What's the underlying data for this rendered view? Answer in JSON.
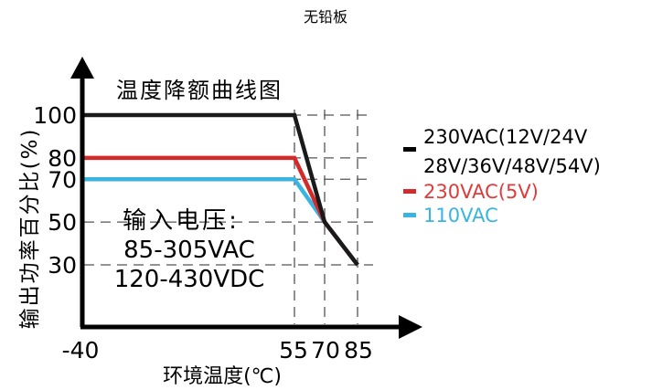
{
  "page_title": "无铅板",
  "chart_data": {
    "type": "line",
    "title": "温度降额曲线图",
    "xlabel": "环境温度(℃)",
    "ylabel": "输出功率百分比(%)",
    "x_ticks": [
      -40,
      55,
      70,
      85
    ],
    "y_ticks": [
      100,
      80,
      70,
      50,
      30
    ],
    "xlim": [
      -40,
      85
    ],
    "ylim": [
      30,
      100
    ],
    "legend_position": "right",
    "input_note": [
      "输入电压:",
      "85-305VAC",
      "120-430VDC"
    ],
    "series": [
      {
        "name_lines": [
          "230VAC(12V/24V",
          "28V/36V/48V/54V)"
        ],
        "color": "#1a1a1a",
        "text_color": "#000000",
        "points": [
          [
            -40,
            100
          ],
          [
            55,
            100
          ],
          [
            70,
            50
          ],
          [
            85,
            30
          ]
        ]
      },
      {
        "name_lines": [
          "230VAC(5V)"
        ],
        "color": "#d42a2a",
        "text_color": "#e03a3a",
        "points": [
          [
            -40,
            80
          ],
          [
            55,
            80
          ],
          [
            70,
            50
          ],
          [
            85,
            30
          ]
        ]
      },
      {
        "name_lines": [
          "110VAC"
        ],
        "color": "#3ab4e0",
        "text_color": "#3ab4e0",
        "points": [
          [
            -40,
            70
          ],
          [
            55,
            70
          ],
          [
            70,
            50
          ],
          [
            85,
            30
          ]
        ]
      }
    ]
  }
}
